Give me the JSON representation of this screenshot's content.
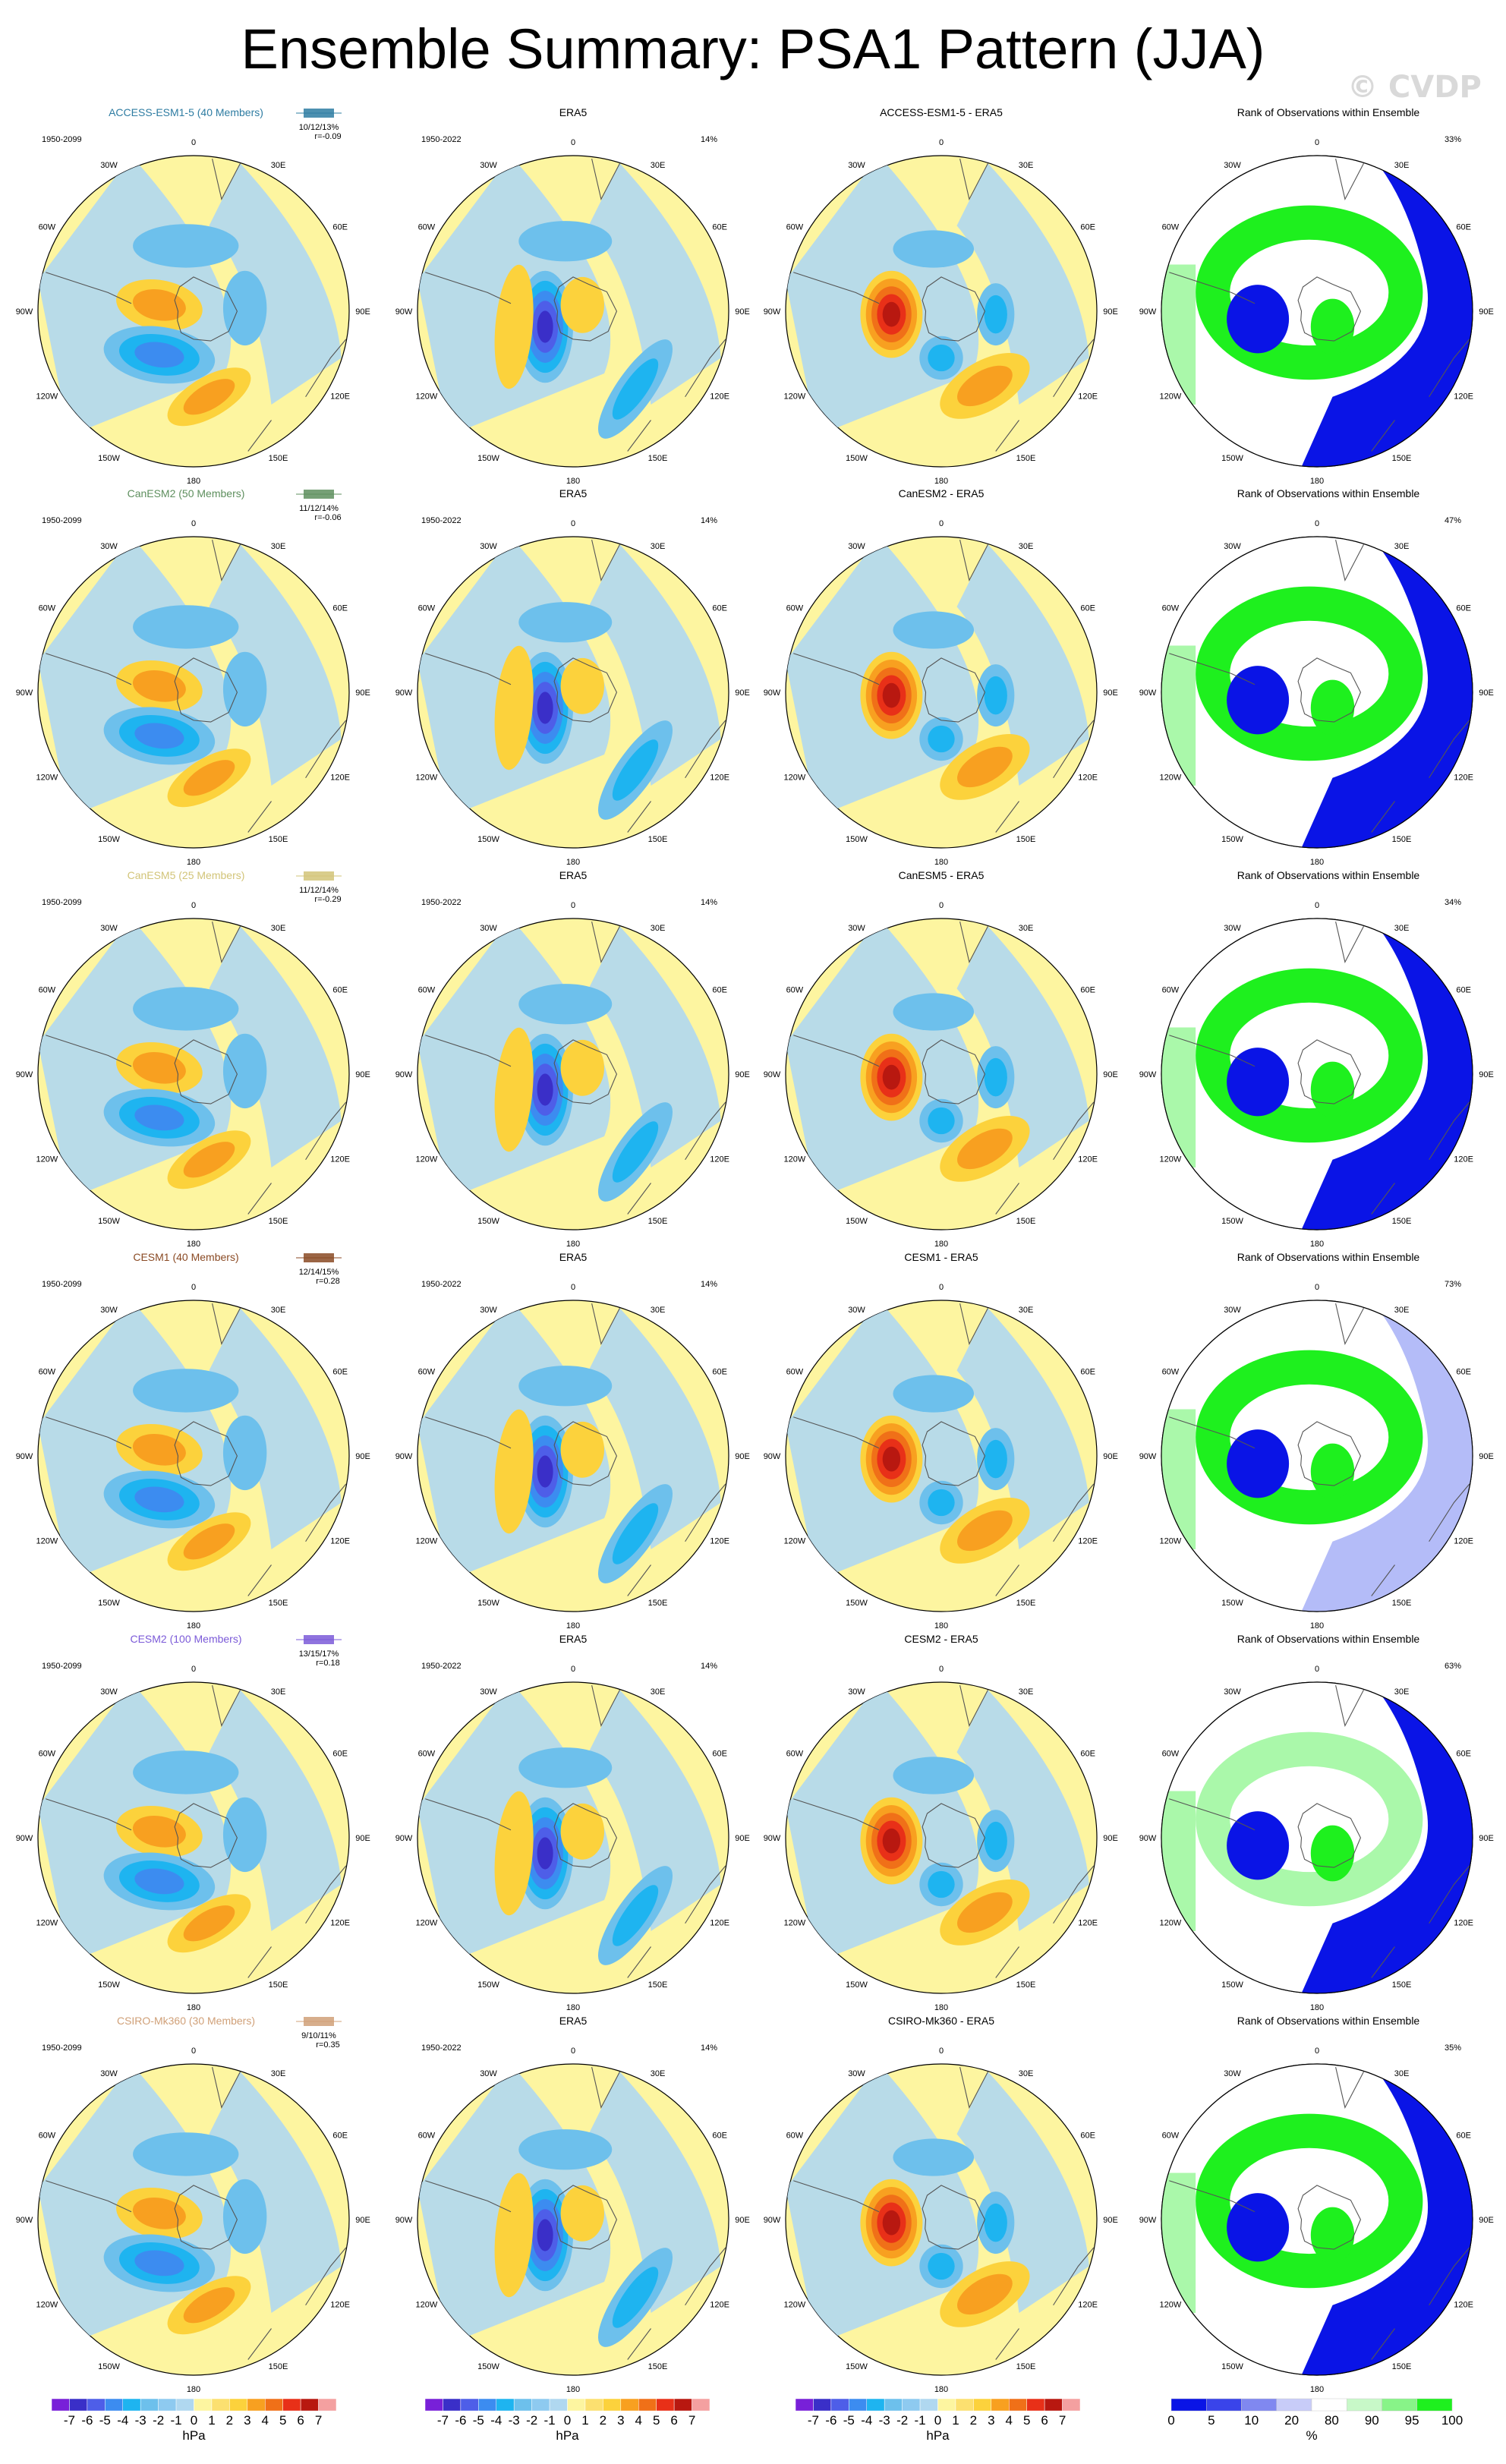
{
  "title": "Ensemble Summary: PSA1 Pattern (JJA)",
  "watermark": "© CVDP",
  "colors": {
    "lightblue": "#b0d8f0",
    "midblue": "#6dc0ec",
    "cyan": "#1eb4f0",
    "blue2": "#3c8cf0",
    "blue3": "#4e5ee8",
    "blue4": "#3a2fc8",
    "lightyellow": "#fdf5a0",
    "yellow": "#fcd23c",
    "orange": "#f8a020",
    "orange2": "#f07018",
    "red": "#e83018",
    "darkred": "#b81810",
    "rank_blue": "#0a14e6",
    "rank_lightblue": "#b4bcf8",
    "rank_green": "#1ef01e",
    "rank_lightgreen": "#aaf8aa",
    "land": "#555555"
  },
  "lon_labels": [
    "0",
    "30E",
    "60E",
    "90E",
    "120E",
    "150E",
    "180",
    "150W",
    "120W",
    "90W",
    "60W",
    "30W"
  ],
  "rows": [
    {
      "model": "ACCESS-ESM1-5 (40 Members)",
      "model_color": "#2e7ca2",
      "model_period": "1950-2099",
      "stats": "10/12/13%",
      "r": "r=-0.09",
      "obs_title": "ERA5",
      "obs_period": "1950-2022",
      "obs_pct": "14%",
      "diff_title": "ACCESS-ESM1-5 - ERA5",
      "rank_title": "Rank of Observations within Ensemble",
      "rank_pct": "33%"
    },
    {
      "model": "CanESM2 (50 Members)",
      "model_color": "#5e8f5e",
      "model_period": "1950-2099",
      "stats": "11/12/14%",
      "r": "r=-0.06",
      "obs_title": "ERA5",
      "obs_period": "1950-2022",
      "obs_pct": "14%",
      "diff_title": "CanESM2 - ERA5",
      "rank_title": "Rank of Observations within Ensemble",
      "rank_pct": "47%"
    },
    {
      "model": "CanESM5 (25 Members)",
      "model_color": "#d2c478",
      "model_period": "1950-2099",
      "stats": "11/12/14%",
      "r": "r=-0.29",
      "obs_title": "ERA5",
      "obs_period": "1950-2022",
      "obs_pct": "14%",
      "diff_title": "CanESM5 - ERA5",
      "rank_title": "Rank of Observations within Ensemble",
      "rank_pct": "34%"
    },
    {
      "model": "CESM1 (40 Members)",
      "model_color": "#8a4a24",
      "model_period": "1950-2099",
      "stats": "12/14/15%",
      "r": "r=0.28",
      "obs_title": "ERA5",
      "obs_period": "1950-2022",
      "obs_pct": "14%",
      "diff_title": "CESM1 - ERA5",
      "rank_title": "Rank of Observations within Ensemble",
      "rank_pct": "73%"
    },
    {
      "model": "CESM2 (100 Members)",
      "model_color": "#7b5ad8",
      "model_period": "1950-2099",
      "stats": "13/15/17%",
      "r": "r=0.18",
      "obs_title": "ERA5",
      "obs_period": "1950-2022",
      "obs_pct": "14%",
      "diff_title": "CESM2 - ERA5",
      "rank_title": "Rank of Observations within Ensemble",
      "rank_pct": "63%"
    },
    {
      "model": "CSIRO-Mk360 (30 Members)",
      "model_color": "#d0a078",
      "model_period": "1950-2099",
      "stats": "9/10/11%",
      "r": "r=0.35",
      "obs_title": "ERA5",
      "obs_period": "1950-2022",
      "obs_pct": "14%",
      "diff_title": "CSIRO-Mk360 - ERA5",
      "rank_title": "Rank of Observations within Ensemble",
      "rank_pct": "35%"
    }
  ],
  "colorbars": {
    "hpa_labels": [
      "-7",
      "-6",
      "-5",
      "-4",
      "-3",
      "-2",
      "-1",
      "0",
      "1",
      "2",
      "3",
      "4",
      "5",
      "6",
      "7"
    ],
    "hpa_unit": "hPa",
    "hpa_colors": [
      "#7820d8",
      "#3a2fc8",
      "#4e5ee8",
      "#3c8cf0",
      "#1eb4f0",
      "#6dc0ec",
      "#8ecaf0",
      "#b0d8f0",
      "#fdf5a0",
      "#fce070",
      "#fcd23c",
      "#f8a020",
      "#f07018",
      "#e83018",
      "#b81810",
      "#f4a0a0"
    ],
    "rank_labels": [
      "0",
      "5",
      "10",
      "20",
      "80",
      "90",
      "95",
      "100"
    ],
    "rank_unit": "%",
    "rank_colors": [
      "#0a14e6",
      "#3a44ea",
      "#8088f0",
      "#c8ccf8",
      "#ffffff",
      "#c8f8c8",
      "#88f488",
      "#1ef01e"
    ]
  },
  "chart_data": {
    "type": "heatmap",
    "title": "Ensemble Summary: PSA1 Pattern (JJA)",
    "projection": "south polar stereographic",
    "season": "JJA",
    "units": "hPa",
    "contour_levels": [
      -7,
      -6,
      -5,
      -4,
      -3,
      -2,
      -1,
      0,
      1,
      2,
      3,
      4,
      5,
      6,
      7
    ],
    "rank_levels_percent": [
      0,
      5,
      10,
      20,
      80,
      90,
      95,
      100
    ],
    "panels": [
      {
        "row": "ACCESS-ESM1-5",
        "columns": [
          "ACCESS-ESM1-5 (40 Members)",
          "ERA5",
          "ACCESS-ESM1-5 - ERA5",
          "Rank of Observations within Ensemble"
        ],
        "model_pct": "10/12/13%",
        "r": -0.09,
        "obs_pct": 14,
        "rank_pct": 33
      },
      {
        "row": "CanESM2",
        "columns": [
          "CanESM2 (50 Members)",
          "ERA5",
          "CanESM2 - ERA5",
          "Rank of Observations within Ensemble"
        ],
        "model_pct": "11/12/14%",
        "r": -0.06,
        "obs_pct": 14,
        "rank_pct": 47
      },
      {
        "row": "CanESM5",
        "columns": [
          "CanESM5 (25 Members)",
          "ERA5",
          "CanESM5 - ERA5",
          "Rank of Observations within Ensemble"
        ],
        "model_pct": "11/12/14%",
        "r": -0.29,
        "obs_pct": 14,
        "rank_pct": 34
      },
      {
        "row": "CESM1",
        "columns": [
          "CESM1 (40 Members)",
          "ERA5",
          "CESM1 - ERA5",
          "Rank of Observations within Ensemble"
        ],
        "model_pct": "12/14/15%",
        "r": 0.28,
        "obs_pct": 14,
        "rank_pct": 73
      },
      {
        "row": "CESM2",
        "columns": [
          "CESM2 (100 Members)",
          "ERA5",
          "CESM2 - ERA5",
          "Rank of Observations within Ensemble"
        ],
        "model_pct": "13/15/17%",
        "r": 0.18,
        "obs_pct": 14,
        "rank_pct": 63
      },
      {
        "row": "CSIRO-Mk360",
        "columns": [
          "CSIRO-Mk360 (30 Members)",
          "ERA5",
          "CSIRO-Mk360 - ERA5",
          "Rank of Observations within Ensemble"
        ],
        "model_pct": "9/10/11%",
        "r": 0.35,
        "obs_pct": 14,
        "rank_pct": 35
      }
    ]
  }
}
